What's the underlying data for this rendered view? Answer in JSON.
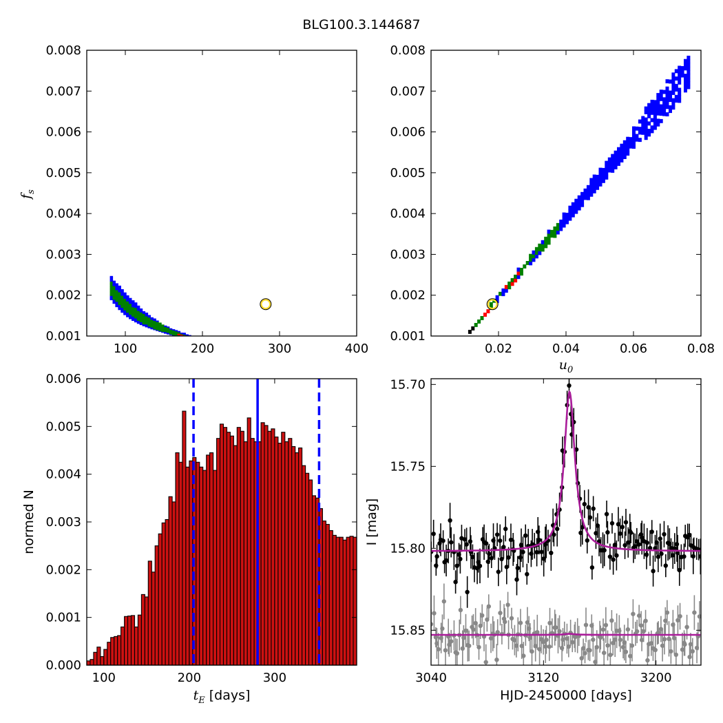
{
  "figure": {
    "title": "BLG100.3.144687"
  },
  "colors": {
    "outer": "#0000ff",
    "middle": "#008000",
    "inner": "#ff0000",
    "best": "#000000",
    "marker": "#ffdd33",
    "hist_fill": "#cc1111",
    "model": "#aa1c9a",
    "grey": "#888888"
  },
  "chart_data": [
    {
      "id": "fs_vs_tE",
      "type": "heatmap",
      "xlim": [
        50,
        400
      ],
      "ylim": [
        0.001,
        0.008
      ],
      "xticks": [
        "100",
        "200",
        "300",
        "400"
      ],
      "xtick_values": [
        100,
        200,
        300,
        400
      ],
      "yticks": [
        "0.001",
        "0.002",
        "0.003",
        "0.004",
        "0.005",
        "0.006",
        "0.007",
        "0.008"
      ],
      "ytick_values": [
        0.001,
        0.002,
        0.003,
        0.004,
        0.005,
        0.006,
        0.007,
        0.008
      ],
      "ylabel_base": "f",
      "ylabel_sub": "s",
      "relation": "fs ≈ 0.16 / tE^0.985 (inverse curve)",
      "best_point": {
        "x": 282,
        "y": 0.00178
      },
      "levels": [
        "blue",
        "green",
        "red",
        "black"
      ]
    },
    {
      "id": "fs_vs_u0",
      "type": "heatmap",
      "xlim": [
        0.0,
        0.08
      ],
      "ylim": [
        0.001,
        0.008
      ],
      "xticks": [
        "0.02",
        "0.04",
        "0.06",
        "0.08"
      ],
      "xtick_values": [
        0.02,
        0.04,
        0.06,
        0.08
      ],
      "yticks": [
        "0.001",
        "0.002",
        "0.003",
        "0.004",
        "0.005",
        "0.006",
        "0.007",
        "0.008"
      ],
      "ytick_values": [
        0.001,
        0.002,
        0.003,
        0.004,
        0.005,
        0.006,
        0.007,
        0.008
      ],
      "xlabel_base": "u",
      "xlabel_sub": "0",
      "relation": "fs ≈ 0.097 * u0 (linear)",
      "best_point": {
        "x": 0.0182,
        "y": 0.00178
      },
      "levels": [
        "blue",
        "green",
        "red",
        "black"
      ]
    },
    {
      "id": "tE_histogram",
      "type": "bar",
      "xlim": [
        80,
        396
      ],
      "ylim": [
        0,
        0.006
      ],
      "xticks": [
        "100",
        "200",
        "300"
      ],
      "xtick_values": [
        100,
        200,
        300
      ],
      "yticks": [
        "0.000",
        "0.001",
        "0.002",
        "0.003",
        "0.004",
        "0.005",
        "0.006"
      ],
      "ytick_values": [
        0,
        0.001,
        0.002,
        0.003,
        0.004,
        0.005,
        0.006
      ],
      "xlabel_base": "t",
      "xlabel_sub": "E",
      "xlabel_unit": " [days]",
      "ylabel": "normed N",
      "bin_start": 80,
      "bin_width": 4,
      "values": [
        9e-05,
        0.00012,
        0.00027,
        0.00038,
        0.00018,
        0.00033,
        0.00048,
        0.00058,
        0.0006,
        0.00062,
        0.0008,
        0.00102,
        0.00103,
        0.00104,
        0.0008,
        0.00105,
        0.00148,
        0.00143,
        0.00218,
        0.00195,
        0.0025,
        0.00275,
        0.00298,
        0.00305,
        0.00353,
        0.00342,
        0.00445,
        0.00425,
        0.00532,
        0.00415,
        0.00428,
        0.00435,
        0.00425,
        0.00415,
        0.00408,
        0.0044,
        0.00445,
        0.00408,
        0.00475,
        0.00505,
        0.00498,
        0.00488,
        0.0048,
        0.0046,
        0.00498,
        0.0049,
        0.00468,
        0.00518,
        0.00475,
        0.00468,
        0.00468,
        0.00508,
        0.00502,
        0.0049,
        0.00495,
        0.00478,
        0.00465,
        0.00488,
        0.00468,
        0.00475,
        0.00458,
        0.00445,
        0.00455,
        0.00418,
        0.00402,
        0.00388,
        0.00355,
        0.0035,
        0.00328,
        0.00302,
        0.00295,
        0.00282,
        0.00272,
        0.00268,
        0.00268,
        0.00262,
        0.00268,
        0.0027,
        0.00268
      ],
      "median": 280,
      "conf_interval": [
        205,
        352
      ]
    },
    {
      "id": "lightcurve",
      "type": "scatter",
      "xlim": [
        3040,
        3232
      ],
      "ylim": [
        15.8713,
        15.6965
      ],
      "xticks": [
        "3040",
        "3120",
        "3200"
      ],
      "xtick_values": [
        3040,
        3120,
        3200
      ],
      "yticks": [
        "15.70",
        "15.75",
        "15.80",
        "15.85"
      ],
      "ytick_values": [
        15.7,
        15.75,
        15.8,
        15.85
      ],
      "xlabel": "HJD-2450000 [days]",
      "ylabel": "I [mag]",
      "model": {
        "t0": 3138.5,
        "baseline": 15.8018,
        "peak": 15.7045,
        "shape": "Paczynski"
      },
      "series": [
        {
          "name": "",
          "color": "#000000",
          "baseline": 15.8018,
          "n_points": 150,
          "scatter": 0.008,
          "error": 0.0085
        },
        {
          "name": "",
          "color": "#888888",
          "baseline": 15.8528,
          "n_points": 150,
          "scatter": 0.007,
          "error": 0.0085
        }
      ]
    }
  ]
}
